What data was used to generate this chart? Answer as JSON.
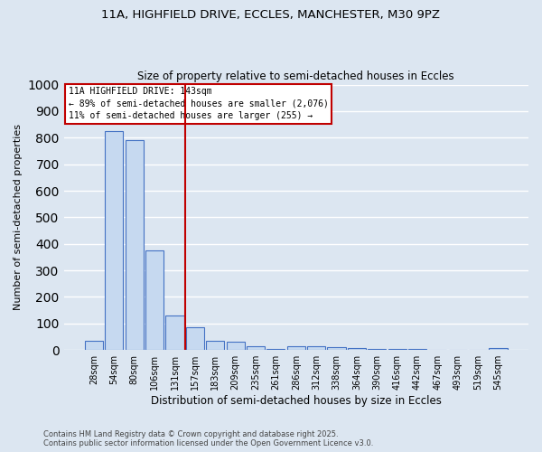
{
  "title1": "11A, HIGHFIELD DRIVE, ECCLES, MANCHESTER, M30 9PZ",
  "title2": "Size of property relative to semi-detached houses in Eccles",
  "xlabel": "Distribution of semi-detached houses by size in Eccles",
  "ylabel": "Number of semi-detached properties",
  "footnote1": "Contains HM Land Registry data © Crown copyright and database right 2025.",
  "footnote2": "Contains public sector information licensed under the Open Government Licence v3.0.",
  "categories": [
    "28sqm",
    "54sqm",
    "80sqm",
    "106sqm",
    "131sqm",
    "157sqm",
    "183sqm",
    "209sqm",
    "235sqm",
    "261sqm",
    "286sqm",
    "312sqm",
    "338sqm",
    "364sqm",
    "390sqm",
    "416sqm",
    "442sqm",
    "467sqm",
    "493sqm",
    "519sqm",
    "545sqm"
  ],
  "values": [
    35,
    825,
    790,
    375,
    130,
    85,
    35,
    30,
    15,
    5,
    13,
    13,
    10,
    7,
    5,
    3,
    3,
    2,
    1,
    1,
    7
  ],
  "bar_color": "#c6d9f0",
  "bar_edge_color": "#4472c4",
  "vline_x": 4.5,
  "vline_color": "#c00000",
  "annotation_title": "11A HIGHFIELD DRIVE: 143sqm",
  "annotation_line1": "← 89% of semi-detached houses are smaller (2,076)",
  "annotation_line2": "11% of semi-detached houses are larger (255) →",
  "annotation_box_color": "#c00000",
  "ylim": [
    0,
    1000
  ],
  "yticks": [
    0,
    100,
    200,
    300,
    400,
    500,
    600,
    700,
    800,
    900,
    1000
  ],
  "background_color": "#dce6f1",
  "grid_color": "#ffffff"
}
